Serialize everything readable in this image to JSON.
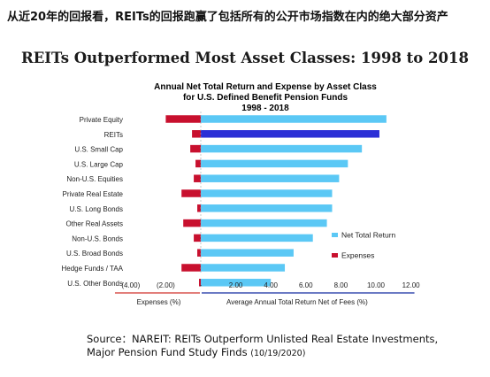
{
  "headline": "从近20年的回报看，REITs的回报跑赢了包括所有的公开市场指数在内的绝大部分资产",
  "slide_title": "REITs Outperformed Most Asset Classes: 1998 to 2018",
  "source": {
    "line1": "Source：NAREIT: REITs Outperform Unlisted Real Estate Investments,",
    "line2": "Major Pension Fund Study Finds",
    "date": "(10/19/2020)"
  },
  "colors": {
    "net_return": "#5bc8f5",
    "reits_highlight": "#2b2fd6",
    "expenses": "#c8102e",
    "neg_axis_line": "#d9534f",
    "pos_axis_line": "#3a4fb0"
  },
  "chart_data": {
    "type": "bar",
    "orientation": "horizontal",
    "title": [
      "Annual Net Total Return and Expense by Asset Class",
      "for U.S. Defined Benefit Pension Funds",
      "1998 - 2018"
    ],
    "categories": [
      "Private Equity",
      "REITs",
      "U.S. Small Cap",
      "U.S. Large Cap",
      "Non-U.S. Equities",
      "Private Real Estate",
      "U.S. Long Bonds",
      "Other Real Assets",
      "Non-U.S. Bonds",
      "U.S. Broad Bonds",
      "Hedge Funds / TAA",
      "U.S. Other Bonds"
    ],
    "series": [
      {
        "name": "Net Total Return",
        "values": [
          10.6,
          10.2,
          9.2,
          8.4,
          7.9,
          7.5,
          7.5,
          7.2,
          6.4,
          5.3,
          4.8,
          4.0
        ]
      },
      {
        "name": "Expenses",
        "values": [
          -2.0,
          -0.5,
          -0.6,
          -0.3,
          -0.4,
          -1.1,
          -0.2,
          -1.0,
          -0.4,
          -0.2,
          -1.1,
          -0.1
        ]
      }
    ],
    "highlight_category": "REITs",
    "xlim": [
      -4,
      12
    ],
    "xticks": [
      -4,
      -2,
      0,
      2,
      4,
      6,
      8,
      10,
      12
    ],
    "xtick_labels": [
      "(4.00)",
      "(2.00)",
      "-",
      "2.00",
      "4.00",
      "6.00",
      "8.00",
      "10.00",
      "12.00"
    ],
    "xlabel_negative": "Expenses (%)",
    "xlabel_positive": "Average Annual Total Return Net of Fees (%)",
    "legend_position": "right"
  }
}
